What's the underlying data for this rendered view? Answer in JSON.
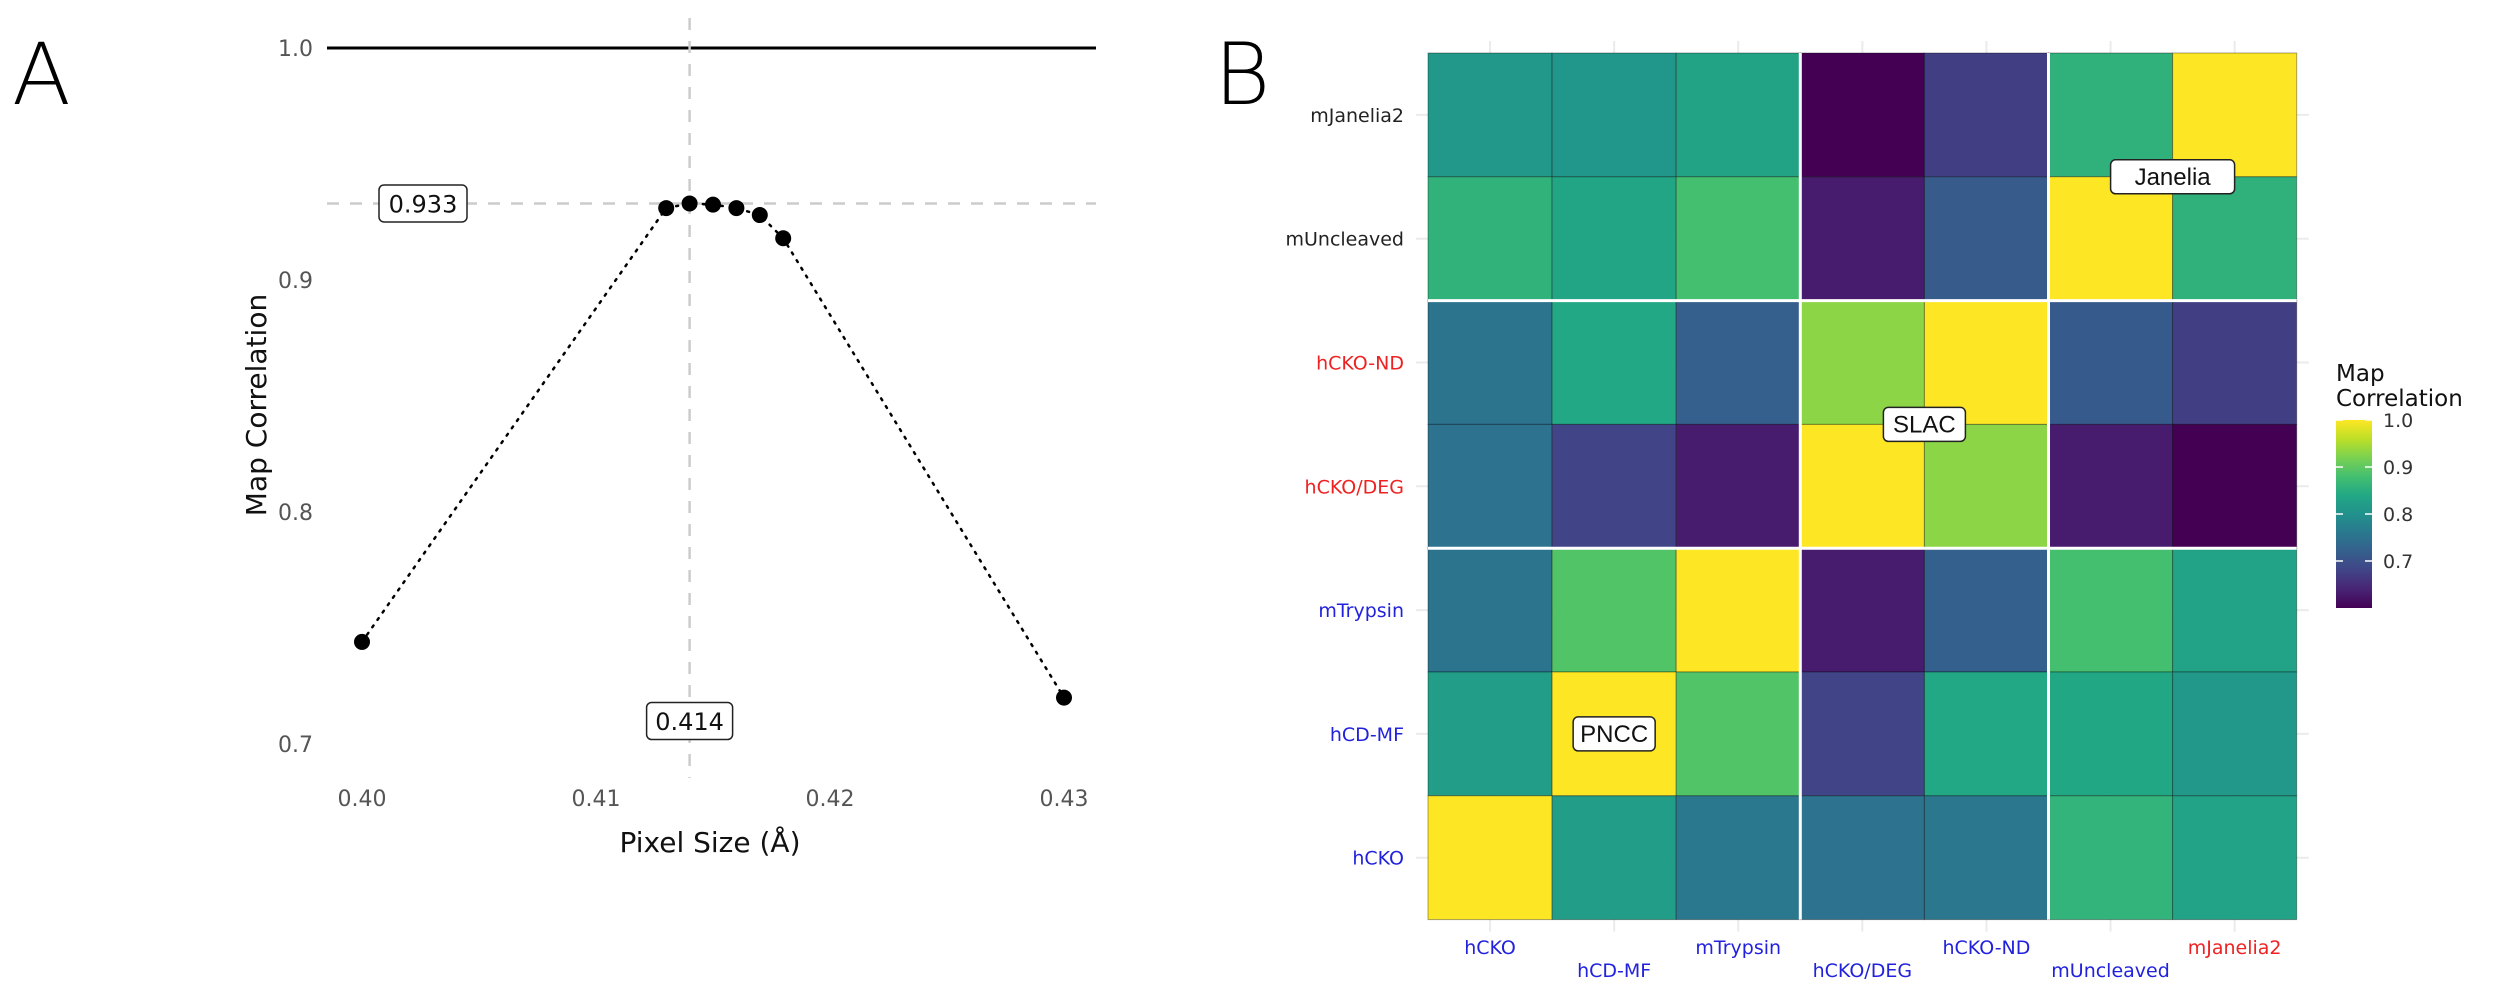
{
  "figure": {
    "panels": [
      "A",
      "B"
    ]
  },
  "chart_data": [
    {
      "panel": "A",
      "type": "scatter",
      "line_style": "dotted",
      "title": "",
      "xlabel": "Pixel Size (Å)",
      "ylabel": "Map Correlation",
      "xlim": [
        0.398,
        0.431
      ],
      "ylim": [
        0.688,
        1.008
      ],
      "x_ticks": [
        0.4,
        0.41,
        0.42,
        0.43
      ],
      "x_tick_labels": [
        "0.40",
        "0.41",
        "0.42",
        "0.43"
      ],
      "y_ticks": [
        0.7,
        0.8,
        0.9,
        1.0
      ],
      "y_tick_labels": [
        "0.7",
        "0.8",
        "0.9",
        "1.0"
      ],
      "grid": false,
      "reference_lines": {
        "horizontal_solid": 1.0,
        "horizontal_dashed": 0.933,
        "vertical_dashed": 0.414
      },
      "annotations": [
        {
          "text": "0.933",
          "anchor": "y-reference"
        },
        {
          "text": "0.414",
          "anchor": "x-reference"
        }
      ],
      "x": [
        0.4,
        0.413,
        0.414,
        0.415,
        0.416,
        0.417,
        0.418,
        0.43
      ],
      "y": [
        0.744,
        0.931,
        0.933,
        0.9325,
        0.931,
        0.928,
        0.918,
        0.72
      ]
    },
    {
      "panel": "B",
      "type": "heatmap",
      "title": "",
      "xlabel": "",
      "ylabel": "",
      "x_categories": [
        "hCKO",
        "hCD-MF",
        "mTrypsin",
        "hCKO/DEG",
        "hCKO-ND",
        "mUncleaved",
        "mJanelia2"
      ],
      "x_label_colors": [
        "#2222dd",
        "#2222dd",
        "#2222dd",
        "#2222dd",
        "#2222dd",
        "#2222dd",
        "#ee2222"
      ],
      "y_categories_top_to_bottom": [
        "mJanelia2",
        "mUncleaved",
        "hCKO-ND",
        "hCKO/DEG",
        "mTrypsin",
        "hCD-MF",
        "hCKO"
      ],
      "y_label_colors": [
        "#222222",
        "#222222",
        "#ee2222",
        "#ee2222",
        "#2222dd",
        "#2222dd",
        "#2222dd"
      ],
      "values_top_to_bottom": [
        [
          0.812,
          0.808,
          0.832,
          0.6,
          0.672,
          0.856,
          1.0
        ],
        [
          0.858,
          0.835,
          0.88,
          0.63,
          0.715,
          1.0,
          0.856
        ],
        [
          0.752,
          0.84,
          0.72,
          0.93,
          1.0,
          0.712,
          0.672
        ],
        [
          0.75,
          0.68,
          0.63,
          1.0,
          0.93,
          0.63,
          0.6
        ],
        [
          0.752,
          0.89,
          1.0,
          0.63,
          0.722,
          0.88,
          0.83
        ],
        [
          0.822,
          1.0,
          0.89,
          0.68,
          0.84,
          0.838,
          0.812
        ],
        [
          1.0,
          0.82,
          0.76,
          0.75,
          0.758,
          0.86,
          0.83
        ]
      ],
      "block_sizes": [
        3,
        2,
        2
      ],
      "block_labels": [
        {
          "text": "PNCC",
          "block": 0
        },
        {
          "text": "SLAC",
          "block": 1
        },
        {
          "text": "Janelia",
          "block": 2
        }
      ],
      "colorscale": "viridis",
      "color_range": [
        0.6,
        1.0
      ],
      "legend": {
        "title": [
          "Map",
          "Correlation"
        ],
        "ticks": [
          0.7,
          0.8,
          0.9,
          1.0
        ],
        "tick_labels": [
          "0.7",
          "0.8",
          "0.9",
          "1.0"
        ],
        "placement": "right"
      }
    }
  ]
}
